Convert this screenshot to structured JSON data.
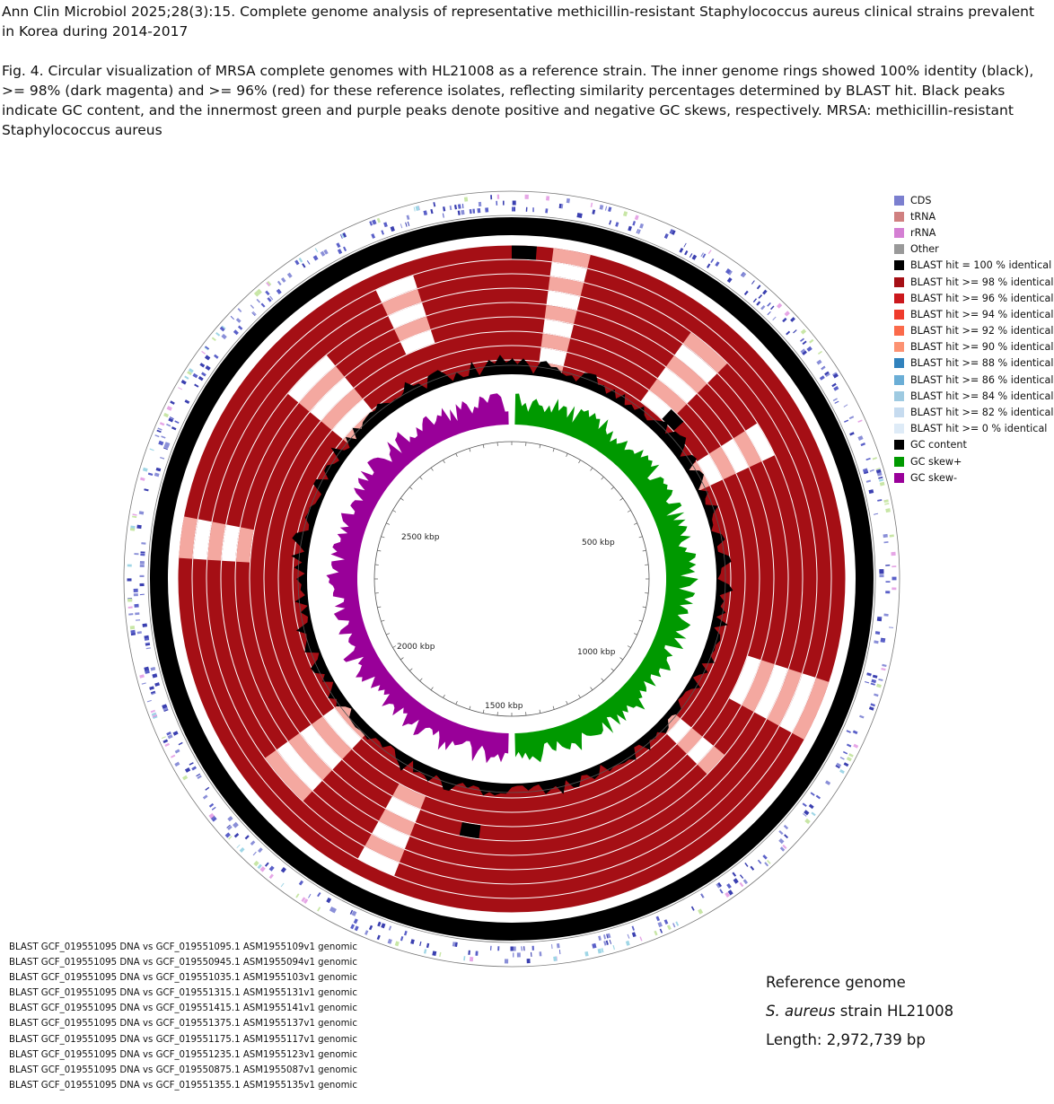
{
  "citation": "Ann Clin Microbiol 2025;28(3):15. Complete genome analysis of representative methicillin-resistant Staphylococcus aureus clinical strains prevalent in Korea during 2014-2017",
  "caption": "Fig. 4. Circular visualization of MRSA complete genomes with HL21008 as a reference strain. The inner genome rings showed 100% identity (black), >= 98% (dark magenta) and >= 96% (red) for these reference isolates, reflecting similarity percentages determined by BLAST hit. Black peaks indicate GC content, and the innermost green and purple peaks denote positive and negative GC skews, respectively. MRSA: methicillin-resistant Staphylococcus aureus",
  "legend": [
    {
      "label": "CDS",
      "color": "#7b7fcf"
    },
    {
      "label": "tRNA",
      "color": "#d08080"
    },
    {
      "label": "rRNA",
      "color": "#d47fd3"
    },
    {
      "label": "Other",
      "color": "#999999"
    },
    {
      "label": "BLAST hit = 100 % identical",
      "color": "#000000"
    },
    {
      "label": "BLAST hit >= 98 % identical",
      "color": "#a50f15"
    },
    {
      "label": "BLAST hit >= 96 % identical",
      "color": "#cb181d"
    },
    {
      "label": "BLAST hit >= 94 % identical",
      "color": "#ef3b2c"
    },
    {
      "label": "BLAST hit >= 92 % identical",
      "color": "#fb6a4a"
    },
    {
      "label": "BLAST hit >= 90 % identical",
      "color": "#fc9272"
    },
    {
      "label": "BLAST hit >= 88 % identical",
      "color": "#3182bd"
    },
    {
      "label": "BLAST hit >= 86 % identical",
      "color": "#6baed6"
    },
    {
      "label": "BLAST hit >= 84 % identical",
      "color": "#9ecae1"
    },
    {
      "label": "BLAST hit >= 82 % identical",
      "color": "#c6dbef"
    },
    {
      "label": "BLAST hit >= 0 % identical",
      "color": "#deebf7"
    },
    {
      "label": "GC content",
      "color": "#000000"
    },
    {
      "label": "GC skew+",
      "color": "#009900"
    },
    {
      "label": "GC skew-",
      "color": "#990099"
    }
  ],
  "kbp_labels": [
    "500 kbp",
    "1000 kbp",
    "1500 kbp",
    "2000 kbp",
    "2500 kbp"
  ],
  "blast_tracks": [
    "BLAST GCF_019551095 DNA vs GCF_019551095.1 ASM1955109v1 genomic",
    "BLAST GCF_019551095 DNA vs GCF_019550945.1 ASM1955094v1 genomic",
    "BLAST GCF_019551095 DNA vs GCF_019551035.1 ASM1955103v1 genomic",
    "BLAST GCF_019551095 DNA vs GCF_019551315.1 ASM1955131v1 genomic",
    "BLAST GCF_019551095 DNA vs GCF_019551415.1 ASM1955141v1 genomic",
    "BLAST GCF_019551095 DNA vs GCF_019551375.1 ASM1955137v1 genomic",
    "BLAST GCF_019551095 DNA vs GCF_019551175.1 ASM1955117v1 genomic",
    "BLAST GCF_019551095 DNA vs GCF_019551235.1 ASM1955123v1 genomic",
    "BLAST GCF_019551095 DNA vs GCF_019550875.1 ASM1955087v1 genomic",
    "BLAST GCF_019551095 DNA vs GCF_019551355.1 ASM1955135v1 genomic"
  ],
  "reference": {
    "heading": "Reference genome",
    "species": "S. aureus",
    "strain": "strain HL21008",
    "length": "Length: 2,972,739 bp"
  },
  "colors": {
    "backbone": "#000000",
    "blast_ring": "#a50f15",
    "gap": "#ffffff",
    "gc_content": "#000000",
    "gc_skew_pos": "#009900",
    "gc_skew_neg": "#990099",
    "cds": "#3a3fb0"
  }
}
